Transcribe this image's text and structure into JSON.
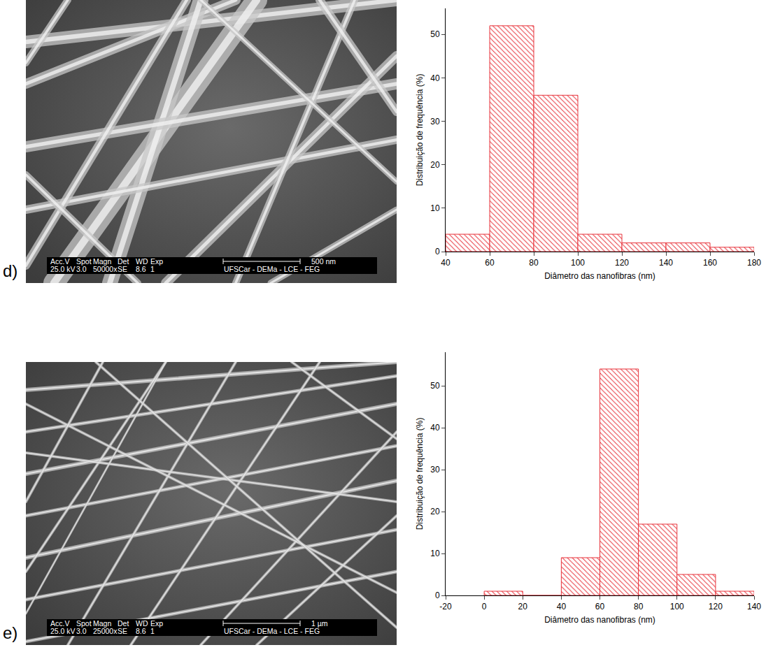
{
  "chart_data": [
    {
      "type": "histogram",
      "x_label": "Diâmetro das nanofibras (nm)",
      "y_label": "Distribuição de frequência (%)",
      "bins": [
        40,
        60,
        80,
        100,
        120,
        140,
        160,
        180
      ],
      "values": [
        4,
        52,
        36,
        4,
        2,
        2,
        1
      ],
      "color": "#e8343c",
      "xlim": [
        40,
        180
      ],
      "xticks": [
        40,
        60,
        80,
        100,
        120,
        140,
        160,
        180
      ],
      "ylim": [
        0,
        56
      ],
      "yticks": [
        0,
        10,
        20,
        30,
        40,
        50
      ],
      "grid": false
    },
    {
      "type": "histogram",
      "x_label": "Diâmetro das nanofibras (nm)",
      "y_label": "Distribuição de frequência (%)",
      "bins": [
        0,
        20,
        40,
        60,
        80,
        100,
        120,
        140
      ],
      "values": [
        1,
        0,
        9,
        54,
        17,
        5,
        1
      ],
      "color": "#e8343c",
      "xlim": [
        -20,
        140
      ],
      "xticks": [
        -20,
        0,
        20,
        40,
        60,
        80,
        100,
        120,
        140
      ],
      "ylim": [
        0,
        58
      ],
      "yticks": [
        0,
        10,
        20,
        30,
        40,
        50
      ],
      "grid": false
    }
  ],
  "micrographs": [
    {
      "label": "d)",
      "info_header": [
        "Acc.V",
        "Spot",
        "Magn",
        "Det",
        "WD",
        "Exp"
      ],
      "info_values": [
        "25.0 kV",
        "3.0",
        "50000x",
        "SE",
        "8.6",
        "1"
      ],
      "scale_bar": "500 nm",
      "lab": "UFSCar - DEMa - LCE - FEG"
    },
    {
      "label": "e)",
      "info_header": [
        "Acc.V",
        "Spot",
        "Magn",
        "Det",
        "WD",
        "Exp"
      ],
      "info_values": [
        "25.0 kV",
        "3.0",
        "25000x",
        "SE",
        "8.6",
        "1"
      ],
      "scale_bar": "1 µm",
      "lab": "UFSCar - DEMa - LCE - FEG"
    }
  ]
}
